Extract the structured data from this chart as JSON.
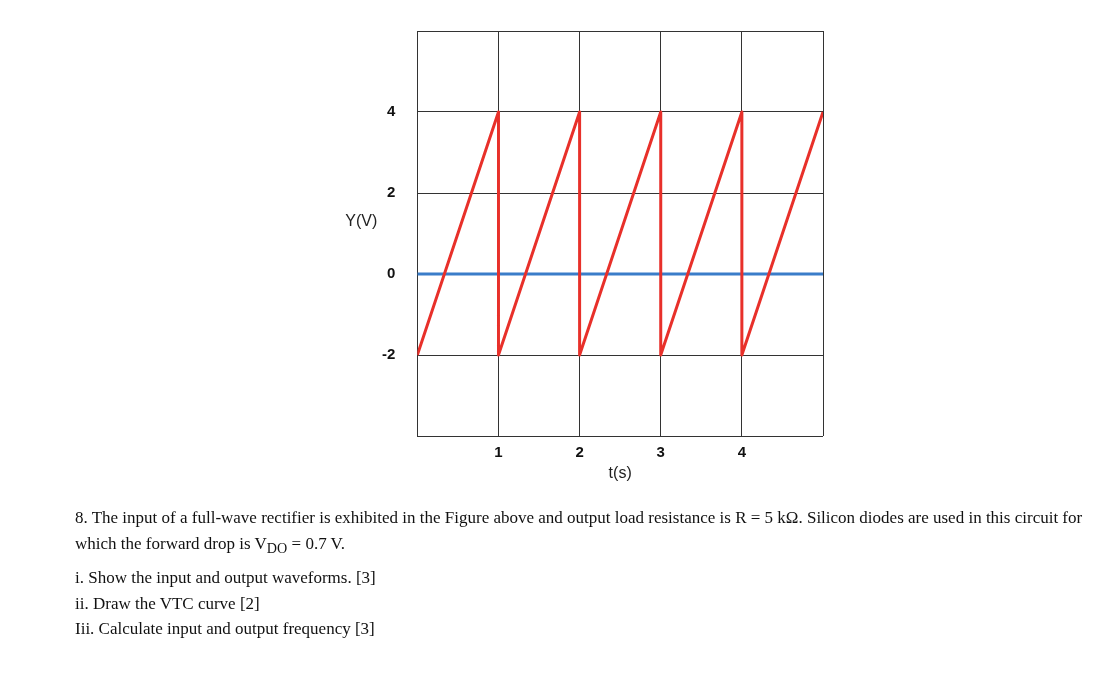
{
  "chart_data": {
    "type": "line",
    "xlabel": "t(s)",
    "ylabel": "Y(V)",
    "series": [
      {
        "color": "#e8302a",
        "x": [
          0,
          1,
          1,
          2,
          2,
          3,
          3,
          4,
          4,
          5
        ],
        "values": [
          -2,
          4,
          -2,
          4,
          -2,
          4,
          -2,
          4,
          -2,
          4
        ]
      },
      {
        "color": "#3a7dc9",
        "x": [
          0,
          5
        ],
        "values": [
          0,
          0
        ]
      }
    ],
    "xlim": [
      0,
      5
    ],
    "xticks": [
      {
        "value": 0,
        "label": null
      },
      1,
      2,
      3,
      4,
      {
        "value": 5,
        "label": null
      }
    ],
    "ylim": [
      -4,
      6
    ],
    "yticks": [
      {
        "value": -4,
        "label": null
      },
      -2,
      0,
      2,
      4,
      {
        "value": 6,
        "label": null
      }
    ],
    "grid": true,
    "marker": "none",
    "line_style": "solid",
    "legend": false,
    "annotations": [
      "8. The input of a full-wave rectifier is exhibited in the Figure above and output load resistance is R = 5 kΩ. Silicon diodes are used in this circuit for which the forward drop is V$_{DO}$ = 0.7 V.",
      "i. Show the input and output waveforms. [3]",
      "ii. Draw the VTC curve [2]",
      "Iii. Calculate input and output frequency [3]"
    ]
  }
}
